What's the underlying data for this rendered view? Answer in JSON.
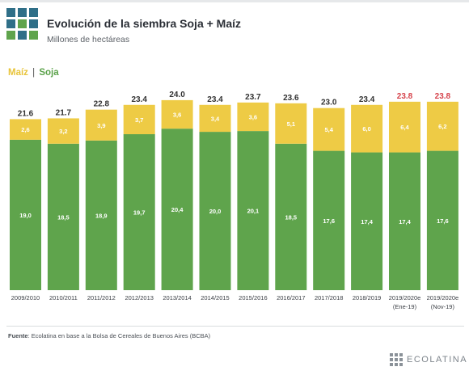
{
  "header": {
    "title": "Evolución de la siembra Soja + Maíz",
    "subtitle": "Millones de hectáreas"
  },
  "legend": {
    "maiz_label": "Maíz",
    "separator": "|",
    "soja_label": "Soja"
  },
  "colors": {
    "maiz": "#eecb45",
    "soja": "#5fa44c",
    "total_label": "#333333",
    "highlight_total": "#d6444c",
    "logo_dark": "#2f6f88",
    "logo_green": "#5fa44c"
  },
  "chart_data": {
    "type": "bar",
    "stacked": true,
    "categories": [
      "2009/2010",
      "2010/2011",
      "2011/2012",
      "2012/2013",
      "2013/2014",
      "2014/2015",
      "2015/2016",
      "2016/2017",
      "2017/2018",
      "2018/2019",
      "2019/2020e",
      "2019/2020e"
    ],
    "category_notes": [
      "",
      "",
      "",
      "",
      "",
      "",
      "",
      "",
      "",
      "",
      "(Ene-19)",
      "(Nov-19)"
    ],
    "series": [
      {
        "name": "Soja",
        "values": [
          19.0,
          18.5,
          18.9,
          19.7,
          20.4,
          20.0,
          20.1,
          18.5,
          17.6,
          17.4,
          17.4,
          17.6
        ],
        "labels": [
          "19,0",
          "18,5",
          "18,9",
          "19,7",
          "20,4",
          "20,0",
          "20,1",
          "18,5",
          "17,6",
          "17,4",
          "17,4",
          "17,6"
        ]
      },
      {
        "name": "Maíz",
        "values": [
          2.6,
          3.2,
          3.9,
          3.7,
          3.6,
          3.4,
          3.6,
          5.1,
          5.4,
          6.0,
          6.4,
          6.2
        ],
        "labels": [
          "2,6",
          "3,2",
          "3,9",
          "3,7",
          "3,6",
          "3,4",
          "3,6",
          "5,1",
          "5,4",
          "6,0",
          "6,4",
          "6,2"
        ]
      }
    ],
    "totals": [
      21.6,
      21.7,
      22.8,
      23.4,
      24.0,
      23.4,
      23.7,
      23.6,
      23.0,
      23.4,
      23.8,
      23.8
    ],
    "total_labels": [
      "21.6",
      "21.7",
      "22.8",
      "23.4",
      "24.0",
      "23.4",
      "23.7",
      "23.6",
      "23.0",
      "23.4",
      "23.8",
      "23.8"
    ],
    "highlighted_totals": [
      10,
      11
    ],
    "ylim": [
      0,
      24.5
    ],
    "xlabel": "",
    "ylabel": "",
    "grid": false
  },
  "footer": {
    "source_label": "Fuente",
    "source_text": ": Ecolatina en base a la Bolsa de Cereales de Buenos Aires (BCBA)",
    "brand": "ECOLATINA"
  }
}
